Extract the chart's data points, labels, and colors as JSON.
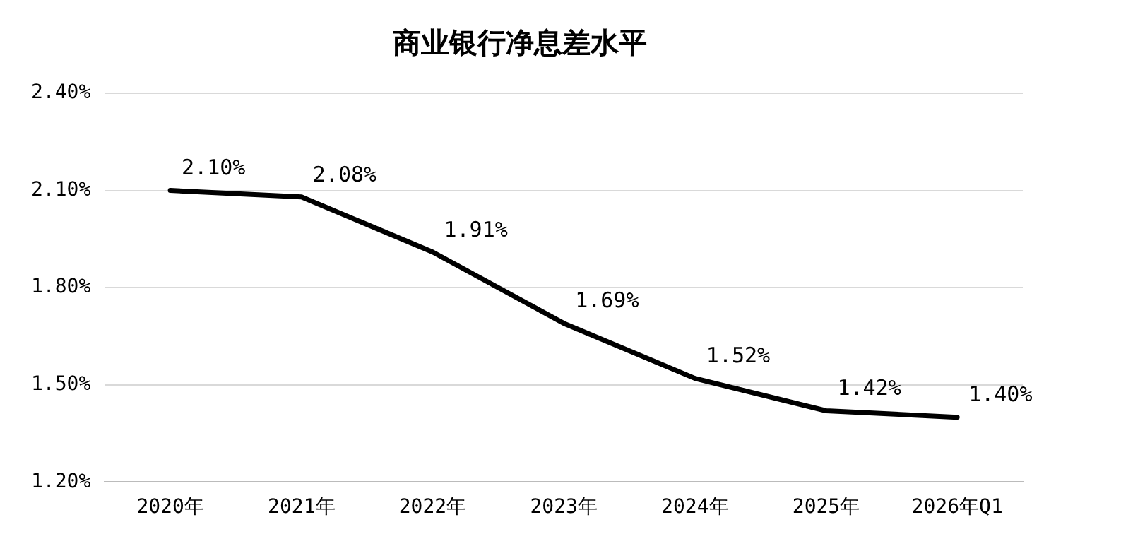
{
  "chart_data": {
    "type": "line",
    "title": "商业银行净息差水平",
    "categories": [
      "2020年",
      "2021年",
      "2022年",
      "2023年",
      "2024年",
      "2025年",
      "2026年Q1"
    ],
    "series": [
      {
        "color": "#000000",
        "values": [
          2.1,
          2.08,
          1.91,
          1.69,
          1.52,
          1.42,
          1.4
        ],
        "value_labels": [
          "2.10%",
          "2.08%",
          "1.91%",
          "1.69%",
          "1.52%",
          "1.42%",
          "1.40%"
        ]
      }
    ],
    "ylim": [
      1.2,
      2.4
    ],
    "yticks": [
      {
        "value": 1.2,
        "label": "1.20%"
      },
      {
        "value": 1.5,
        "label": "1.50%"
      },
      {
        "value": 1.8,
        "label": "1.80%"
      },
      {
        "value": 2.1,
        "label": "2.10%"
      },
      {
        "value": 2.4,
        "label": "2.40%"
      }
    ],
    "grid": "y",
    "legend": false,
    "marker": "none",
    "line_style": "solid"
  }
}
